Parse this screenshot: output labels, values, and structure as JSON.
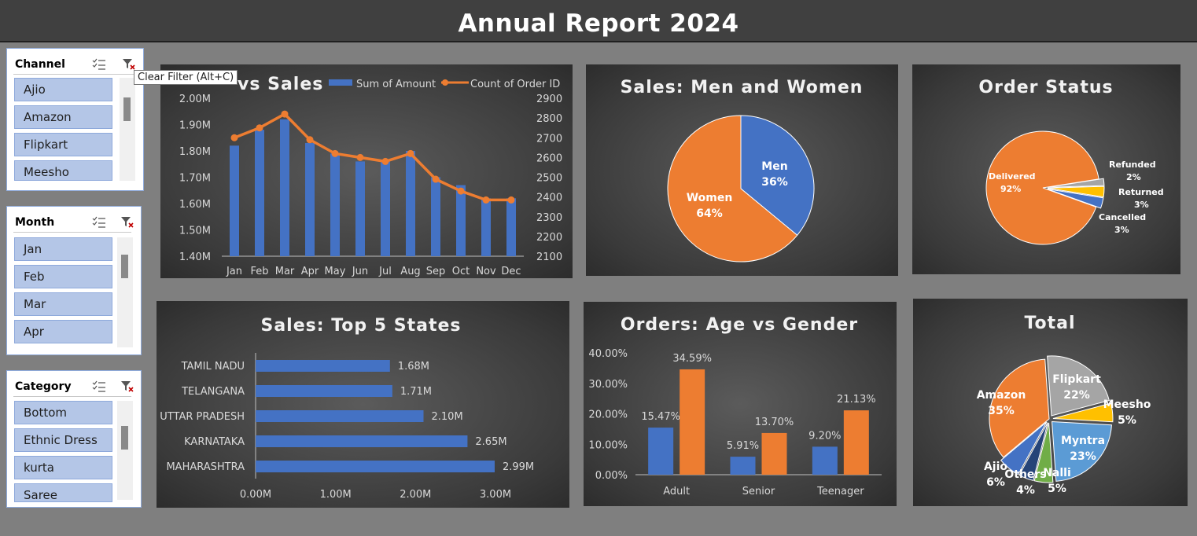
{
  "header": {
    "title": "Annual Report 2024"
  },
  "tooltip": {
    "text": "Clear Filter (Alt+C)"
  },
  "slicers": [
    {
      "title": "Channel",
      "items": [
        "Ajio",
        "Amazon",
        "Flipkart",
        "Meesho"
      ]
    },
    {
      "title": "Month",
      "items": [
        "Jan",
        "Feb",
        "Mar",
        "Apr"
      ]
    },
    {
      "title": "Category",
      "items": [
        "Bottom",
        "Ethnic Dress",
        "kurta",
        "Saree"
      ]
    }
  ],
  "chart_data": [
    {
      "type": "bar+line",
      "title": "Orders vs Sales",
      "visible_title": "vs Sales",
      "categories": [
        "Jan",
        "Feb",
        "Mar",
        "Apr",
        "May",
        "Jun",
        "Jul",
        "Aug",
        "Sep",
        "Oct",
        "Nov",
        "Dec"
      ],
      "series": [
        {
          "name": "Sum of Amount",
          "type": "bar",
          "axis": "left",
          "values": [
            1.82,
            1.88,
            1.92,
            1.83,
            1.79,
            1.76,
            1.76,
            1.8,
            1.7,
            1.67,
            1.62,
            1.62
          ]
        },
        {
          "name": "Count of Order ID",
          "type": "line",
          "axis": "right",
          "values": [
            2700,
            2750,
            2820,
            2690,
            2620,
            2600,
            2580,
            2620,
            2490,
            2430,
            2385,
            2385
          ]
        }
      ],
      "y_left": {
        "min": 1.4,
        "max": 2.0,
        "ticks": [
          "1.40M",
          "1.50M",
          "1.60M",
          "1.70M",
          "1.80M",
          "1.90M",
          "2.00M"
        ]
      },
      "y_right": {
        "min": 2100,
        "max": 2900,
        "ticks": [
          "2100",
          "2200",
          "2300",
          "2400",
          "2500",
          "2600",
          "2700",
          "2800",
          "2900"
        ]
      },
      "legend": "top",
      "colors": {
        "bar": "#4472c4",
        "line": "#ed7d31"
      }
    },
    {
      "type": "pie",
      "title": "Sales: Men and Women",
      "slices": [
        {
          "label": "Men",
          "value": 36,
          "text": "36%",
          "color": "#4472c4"
        },
        {
          "label": "Women",
          "value": 64,
          "text": "64%",
          "color": "#ed7d31"
        }
      ]
    },
    {
      "type": "pie",
      "title": "Order Status",
      "slices": [
        {
          "label": "Delivered",
          "value": 92,
          "text": "92%",
          "color": "#ed7d31"
        },
        {
          "label": "Refunded",
          "value": 2,
          "text": "2%",
          "color": "#a5a5a5"
        },
        {
          "label": "Returned",
          "value": 3,
          "text": "3%",
          "color": "#ffc000"
        },
        {
          "label": "Cancelled",
          "value": 3,
          "text": "3%",
          "color": "#4472c4"
        }
      ]
    },
    {
      "type": "bar",
      "orientation": "horizontal",
      "title": "Sales: Top 5 States",
      "categories": [
        "TAMIL NADU",
        "TELANGANA",
        "UTTAR PRADESH",
        "KARNATAKA",
        "MAHARASHTRA"
      ],
      "values": [
        1.68,
        1.71,
        2.1,
        2.65,
        2.99
      ],
      "labels": [
        "1.68M",
        "1.71M",
        "2.10M",
        "2.65M",
        "2.99M"
      ],
      "x_ticks": [
        "0.00M",
        "1.00M",
        "2.00M",
        "3.00M"
      ],
      "xlim": [
        0,
        3
      ],
      "color": "#4472c4"
    },
    {
      "type": "bar",
      "title": "Orders: Age vs Gender",
      "categories": [
        "Adult",
        "Senior",
        "Teenager"
      ],
      "series": [
        {
          "values": [
            15.47,
            5.91,
            9.2
          ],
          "labels": [
            "15.47%",
            "5.91%",
            "9.20%"
          ],
          "color": "#4472c4"
        },
        {
          "values": [
            34.59,
            13.7,
            21.13
          ],
          "labels": [
            "34.59%",
            "13.70%",
            "21.13%"
          ],
          "color": "#ed7d31"
        }
      ],
      "y_ticks": [
        "0.00%",
        "10.00%",
        "20.00%",
        "30.00%",
        "40.00%"
      ],
      "ylim": [
        0,
        40
      ]
    },
    {
      "type": "pie",
      "title": "Total",
      "slices": [
        {
          "label": "Amazon",
          "value": 35,
          "text": "35%",
          "color": "#ed7d31"
        },
        {
          "label": "Flipkart",
          "value": 22,
          "text": "22%",
          "color": "#a5a5a5"
        },
        {
          "label": "Meesho",
          "value": 5,
          "text": "5%",
          "color": "#ffc000"
        },
        {
          "label": "Myntra",
          "value": 23,
          "text": "23%",
          "color": "#5b9bd5"
        },
        {
          "label": "Nalli",
          "value": 5,
          "text": "5%",
          "color": "#70ad47"
        },
        {
          "label": "Others",
          "value": 4,
          "text": "4%",
          "color": "#264478"
        },
        {
          "label": "Ajio",
          "value": 6,
          "text": "6%",
          "color": "#4472c4"
        }
      ]
    }
  ]
}
